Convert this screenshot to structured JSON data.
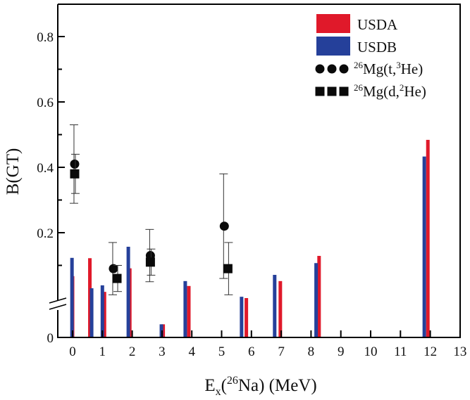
{
  "chart_data": {
    "type": "bar",
    "xlabel": {
      "main": "E",
      "sub": "x",
      "open": "(",
      "sup": "26",
      "rest": "Na) (MeV)"
    },
    "ylabel": "B(GT)",
    "xlim": [
      -0.5,
      13
    ],
    "ylim": [
      0,
      0.9
    ],
    "y_axis_break": true,
    "xticks": [
      "0",
      "1",
      "2",
      "3",
      "4",
      "5",
      "6",
      "7",
      "8",
      "9",
      "10",
      "11",
      "12",
      "13"
    ],
    "yticks": [
      {
        "value": 0,
        "label": "0"
      },
      {
        "value": 0.2,
        "label": "0.2"
      },
      {
        "value": 0.4,
        "label": "0.4"
      },
      {
        "value": 0.6,
        "label": "0.6"
      },
      {
        "value": 0.8,
        "label": "0.8"
      }
    ],
    "legend_position": "top-right",
    "colors": {
      "USDA": "#e0192a",
      "USDB": "#25409a",
      "markers": "#0a0a0a"
    },
    "bar_series": [
      {
        "name": "USDA",
        "color": "#e0192a",
        "points": [
          {
            "x": 0.0,
            "y": 0.067
          },
          {
            "x": 0.58,
            "y": 0.122
          },
          {
            "x": 1.07,
            "y": 0.019
          },
          {
            "x": 1.92,
            "y": 0.091
          },
          {
            "x": 3.04,
            "y": 0.001
          },
          {
            "x": 3.9,
            "y": 0.037
          },
          {
            "x": 5.83,
            "y": 0.003
          },
          {
            "x": 6.97,
            "y": 0.052
          },
          {
            "x": 8.27,
            "y": 0.129
          },
          {
            "x": 11.92,
            "y": 0.484
          }
        ]
      },
      {
        "name": "USDB",
        "color": "#25409a",
        "points": [
          {
            "x": -0.02,
            "y": 0.123
          },
          {
            "x": 0.64,
            "y": 0.03
          },
          {
            "x": 1.0,
            "y": 0.039
          },
          {
            "x": 1.87,
            "y": 0.157
          },
          {
            "x": 2.98,
            "y": 0.001
          },
          {
            "x": 3.78,
            "y": 0.052
          },
          {
            "x": 5.67,
            "y": 0.004
          },
          {
            "x": 6.78,
            "y": 0.071
          },
          {
            "x": 8.17,
            "y": 0.107
          },
          {
            "x": 11.8,
            "y": 0.433
          }
        ]
      }
    ],
    "marker_series": [
      {
        "name": {
          "sup": "26",
          "main": "Mg(t,",
          "sup2": "3",
          "rest": "He)"
        },
        "marker": "circle",
        "points": [
          {
            "x": 0.07,
            "y": 0.41,
            "err_low": 0.29,
            "err_high": 0.53
          },
          {
            "x": 1.37,
            "y": 0.09,
            "err_low": 0.01,
            "err_high": 0.17
          },
          {
            "x": 2.61,
            "y": 0.13,
            "err_low": 0.05,
            "err_high": 0.21
          },
          {
            "x": 5.09,
            "y": 0.22,
            "err_low": 0.06,
            "err_high": 0.38
          }
        ]
      },
      {
        "name": {
          "sup": "26",
          "main": "Mg(d,",
          "sup2": "2",
          "rest": "He)"
        },
        "marker": "square",
        "points": [
          {
            "x": 0.07,
            "y": 0.38,
            "err_low": 0.32,
            "err_high": 0.44
          },
          {
            "x": 1.49,
            "y": 0.06,
            "err_low": 0.02,
            "err_high": 0.1
          },
          {
            "x": 2.61,
            "y": 0.11,
            "err_low": 0.07,
            "err_high": 0.15
          },
          {
            "x": 5.21,
            "y": 0.09,
            "err_low": 0.01,
            "err_high": 0.17
          }
        ]
      }
    ]
  }
}
